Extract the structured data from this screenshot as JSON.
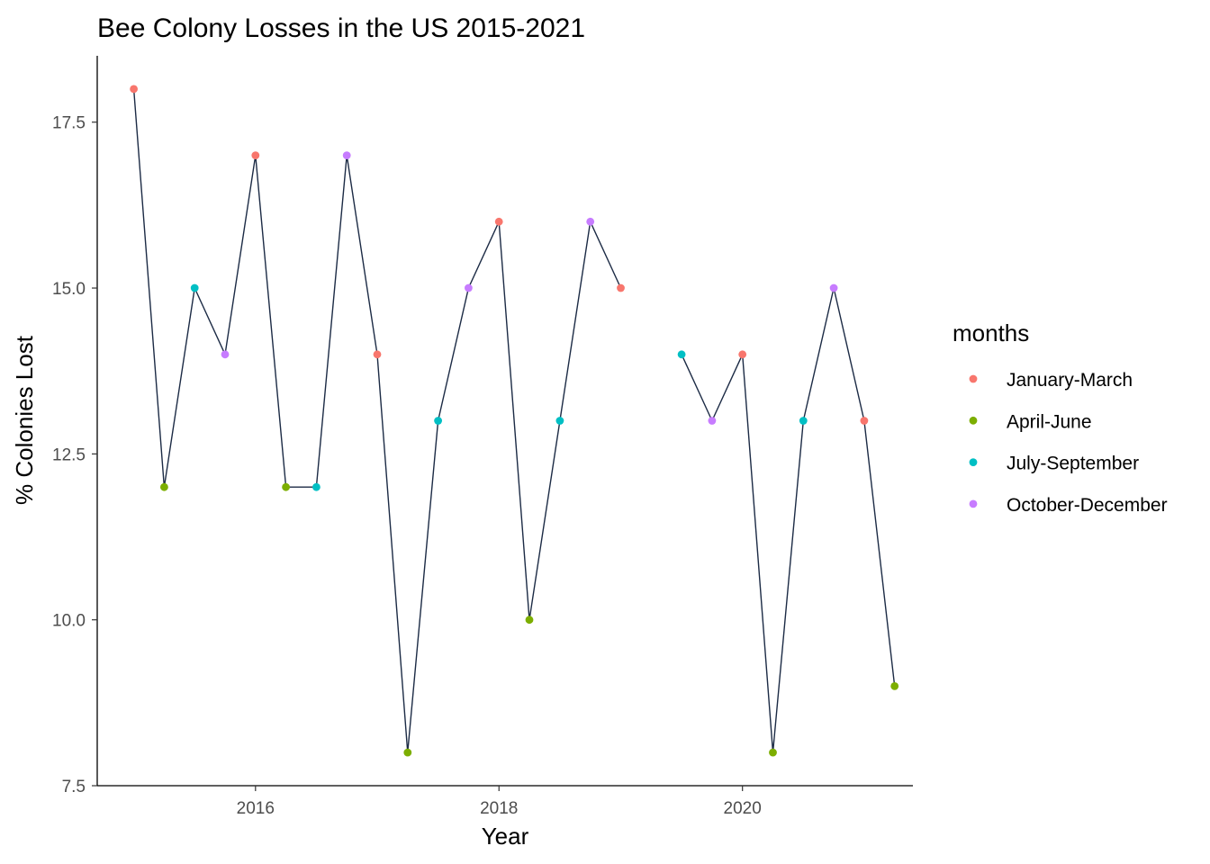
{
  "chart_data": {
    "type": "line",
    "title": "Bee Colony Losses in the US 2015-2021",
    "xlabel": "Year",
    "ylabel": "% Colonies Lost",
    "xlim": [
      2014.7,
      2021.4
    ],
    "ylim": [
      7.5,
      18.5
    ],
    "x_ticks": [
      2016,
      2018,
      2020
    ],
    "x_tick_labels": [
      "2016",
      "2018",
      "2020"
    ],
    "y_ticks": [
      7.5,
      10.0,
      12.5,
      15.0,
      17.5
    ],
    "y_tick_labels": [
      "7.5",
      "10.0",
      "12.5",
      "15.0",
      "17.5"
    ],
    "grid": false,
    "line_color": "#1c2b45",
    "legend": {
      "title": "months",
      "placement": "right",
      "entries": [
        {
          "label": "January-March",
          "color": "#F8766D"
        },
        {
          "label": "April-June",
          "color": "#7CAE00"
        },
        {
          "label": "July-September",
          "color": "#00BFC4"
        },
        {
          "label": "October-December",
          "color": "#C77CFF"
        }
      ]
    },
    "segments": [
      [
        {
          "x": 2015.0,
          "y": 18,
          "months": "January-March"
        },
        {
          "x": 2015.25,
          "y": 12,
          "months": "April-June"
        },
        {
          "x": 2015.5,
          "y": 15,
          "months": "July-September"
        },
        {
          "x": 2015.75,
          "y": 14,
          "months": "October-December"
        },
        {
          "x": 2016.0,
          "y": 17,
          "months": "January-March"
        },
        {
          "x": 2016.25,
          "y": 12,
          "months": "April-June"
        },
        {
          "x": 2016.5,
          "y": 12,
          "months": "July-September"
        },
        {
          "x": 2016.75,
          "y": 17,
          "months": "October-December"
        },
        {
          "x": 2017.0,
          "y": 14,
          "months": "January-March"
        },
        {
          "x": 2017.25,
          "y": 8,
          "months": "April-June"
        },
        {
          "x": 2017.5,
          "y": 13,
          "months": "July-September"
        },
        {
          "x": 2017.75,
          "y": 15,
          "months": "October-December"
        },
        {
          "x": 2018.0,
          "y": 16,
          "months": "January-March"
        },
        {
          "x": 2018.25,
          "y": 10,
          "months": "April-June"
        },
        {
          "x": 2018.5,
          "y": 13,
          "months": "July-September"
        },
        {
          "x": 2018.75,
          "y": 16,
          "months": "October-December"
        },
        {
          "x": 2019.0,
          "y": 15,
          "months": "January-March"
        }
      ],
      [
        {
          "x": 2019.5,
          "y": 14,
          "months": "July-September"
        },
        {
          "x": 2019.75,
          "y": 13,
          "months": "October-December"
        },
        {
          "x": 2020.0,
          "y": 14,
          "months": "January-March"
        },
        {
          "x": 2020.25,
          "y": 8,
          "months": "April-June"
        },
        {
          "x": 2020.5,
          "y": 13,
          "months": "July-September"
        },
        {
          "x": 2020.75,
          "y": 15,
          "months": "October-December"
        },
        {
          "x": 2021.0,
          "y": 13,
          "months": "January-March"
        },
        {
          "x": 2021.25,
          "y": 9,
          "months": "April-June"
        }
      ]
    ]
  }
}
